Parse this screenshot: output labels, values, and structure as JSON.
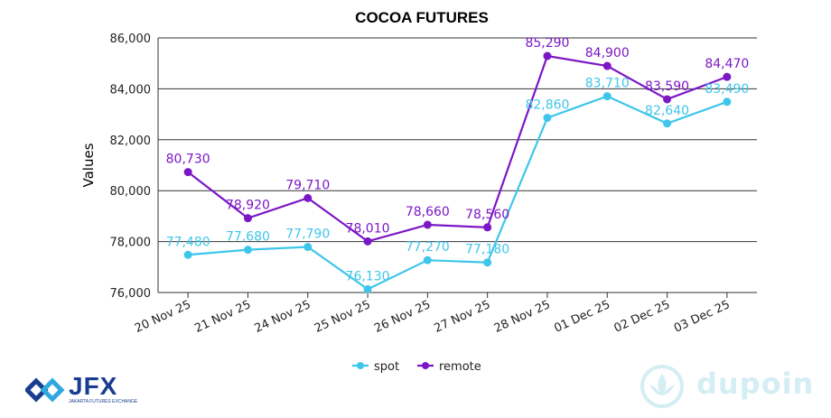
{
  "chart_data": {
    "type": "line",
    "title": "COCOA FUTURES",
    "ylabel": "Values",
    "xlabel": "",
    "categories": [
      "20 Nov 25",
      "21 Nov 25",
      "24 Nov 25",
      "25 Nov 25",
      "26 Nov 25",
      "27 Nov 25",
      "28 Nov 25",
      "01 Dec 25",
      "02 Dec 25",
      "03 Dec 25"
    ],
    "series": [
      {
        "name": "spot",
        "color": "#3ec6ea",
        "values": [
          77480,
          77680,
          77790,
          76130,
          77270,
          77180,
          82860,
          83710,
          82640,
          83490
        ],
        "labels": [
          "77,480",
          "77,680",
          "77,790",
          "76,130",
          "77,270",
          "77,180",
          "82,860",
          "83,710",
          "82,640",
          "83,490"
        ]
      },
      {
        "name": "remote",
        "color": "#7b17c6",
        "values": [
          80730,
          78920,
          79710,
          78010,
          78660,
          78560,
          85290,
          84900,
          83590,
          84470
        ],
        "labels": [
          "80,730",
          "78,920",
          "79,710",
          "78,010",
          "78,660",
          "78,560",
          "85,290",
          "84,900",
          "83,590",
          "84,470"
        ]
      }
    ],
    "ylim": [
      76000,
      86000
    ],
    "yticks": [
      76000,
      78000,
      80000,
      82000,
      84000,
      86000
    ],
    "ytick_labels": [
      "76,000",
      "78,000",
      "80,000",
      "82,000",
      "84,000",
      "86,000"
    ],
    "grid": true,
    "legend": "bottom-center"
  },
  "logos": {
    "left": {
      "text": "JFX",
      "subtitle": "JAKARTA FUTURES EXCHANGE",
      "icon": "jfx-logo-icon",
      "color": "#1a3d8f"
    },
    "right": {
      "text": "DUPOIN",
      "icon": "dupoin-logo-icon",
      "color": "#d4eef3"
    }
  }
}
